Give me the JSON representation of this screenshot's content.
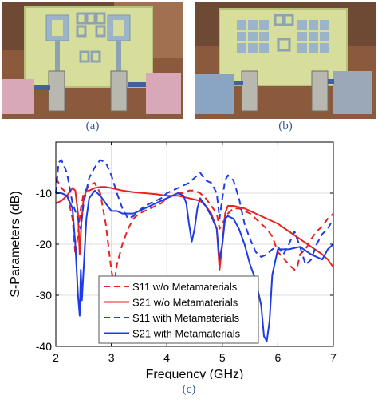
{
  "captions": {
    "a": "(a)",
    "b": "(b)",
    "c": "(c)"
  },
  "colors": {
    "red": "#e8231f",
    "blue": "#1e3ce6"
  },
  "chart_data": {
    "type": "line",
    "xlabel": "Frequency (GHz)",
    "ylabel": "S-Parameters (dB)",
    "xlim": [
      2,
      7
    ],
    "ylim": [
      -40,
      0
    ],
    "xticks": [
      2,
      3,
      4,
      5,
      6,
      7
    ],
    "yticks": [
      -40,
      -30,
      -20,
      -10
    ],
    "grid": true,
    "legend_position": "bottom-left",
    "series": [
      {
        "name": "S11 w/o Metamaterials",
        "color": "#e8231f",
        "dash": true,
        "x": [
          2.0,
          2.1,
          2.2,
          2.3,
          2.35,
          2.4,
          2.45,
          2.5,
          2.6,
          2.7,
          2.8,
          2.9,
          3.0,
          3.05,
          3.1,
          3.2,
          3.3,
          3.4,
          3.5,
          3.6,
          3.7,
          3.8,
          3.9,
          4.0,
          4.1,
          4.2,
          4.3,
          4.4,
          4.5,
          4.6,
          4.7,
          4.8,
          4.9,
          4.95,
          5.0,
          5.1,
          5.2,
          5.3,
          5.4,
          5.5,
          5.6,
          5.7,
          5.8,
          5.9,
          6.0,
          6.2,
          6.3,
          6.35,
          6.4,
          6.5,
          6.6,
          6.7,
          6.8,
          6.9,
          7.0
        ],
        "y": [
          -7,
          -9,
          -10,
          -15,
          -22,
          -18,
          -13,
          -10,
          -8.5,
          -8,
          -10,
          -16,
          -25,
          -28,
          -24,
          -20,
          -17,
          -15,
          -14,
          -13.5,
          -13,
          -12.5,
          -12,
          -11,
          -10.5,
          -10,
          -10,
          -9.5,
          -9.5,
          -10,
          -11,
          -12.5,
          -14,
          -17,
          -16,
          -14,
          -13,
          -13,
          -13.5,
          -14,
          -15,
          -16,
          -17,
          -18.5,
          -21.5,
          -24,
          -25,
          -24.5,
          -22,
          -21,
          -19,
          -17.5,
          -16.5,
          -15,
          -14
        ]
      },
      {
        "name": "S21 w/o Metamaterials",
        "color": "#e8231f",
        "dash": false,
        "x": [
          2.0,
          2.1,
          2.2,
          2.3,
          2.35,
          2.4,
          2.43,
          2.46,
          2.5,
          2.55,
          2.6,
          2.7,
          2.8,
          2.9,
          3.0,
          3.2,
          3.4,
          3.6,
          3.8,
          4.0,
          4.2,
          4.4,
          4.6,
          4.7,
          4.8,
          4.9,
          4.95,
          5.0,
          5.05,
          5.1,
          5.2,
          5.4,
          5.6,
          5.8,
          6.0,
          6.2,
          6.4,
          6.6,
          6.8,
          6.9,
          7.0
        ],
        "y": [
          -12,
          -11.5,
          -10.5,
          -9,
          -9.5,
          -14,
          -22,
          -16,
          -11,
          -9.5,
          -9.5,
          -9,
          -8.8,
          -8.8,
          -9,
          -9.5,
          -9.8,
          -10,
          -10.2,
          -10.5,
          -10.5,
          -11,
          -11.5,
          -12.5,
          -14,
          -17,
          -25,
          -20,
          -14,
          -12.5,
          -12.5,
          -13,
          -14,
          -15,
          -16,
          -17.5,
          -19,
          -20.5,
          -22,
          -23,
          -24.5
        ]
      },
      {
        "name": "S11 with Metamaterials",
        "color": "#1e3ce6",
        "dash": true,
        "x": [
          2.0,
          2.05,
          2.1,
          2.2,
          2.3,
          2.4,
          2.45,
          2.5,
          2.6,
          2.7,
          2.8,
          2.9,
          3.0,
          3.1,
          3.2,
          3.3,
          3.4,
          3.5,
          3.6,
          3.7,
          3.8,
          3.9,
          4.0,
          4.1,
          4.2,
          4.3,
          4.4,
          4.5,
          4.6,
          4.7,
          4.8,
          4.9,
          4.95,
          5.0,
          5.05,
          5.1,
          5.2,
          5.3,
          5.4,
          5.5,
          5.6,
          5.7,
          5.8,
          5.9,
          6.0,
          6.1,
          6.2,
          6.3,
          6.4,
          6.5,
          6.6,
          6.7,
          6.8,
          6.9,
          7.0
        ],
        "y": [
          -10,
          -4,
          -3.5,
          -6,
          -12,
          -15,
          -17,
          -12,
          -7,
          -5,
          -3.5,
          -4,
          -6.5,
          -10,
          -13,
          -15,
          -14.5,
          -13.5,
          -12.5,
          -12,
          -11.5,
          -11,
          -10,
          -9.5,
          -9,
          -8.5,
          -8,
          -7,
          -6,
          -7.5,
          -8,
          -10,
          -15,
          -11,
          -7.5,
          -6.5,
          -7.5,
          -11,
          -16,
          -19,
          -21.5,
          -22.5,
          -22,
          -21,
          -20.5,
          -22,
          -20,
          -17.5,
          -20.5,
          -24,
          -23,
          -20,
          -18,
          -17,
          -15
        ]
      },
      {
        "name": "S21 with Metamaterials",
        "color": "#1e3ce6",
        "dash": false,
        "x": [
          2.0,
          2.1,
          2.2,
          2.3,
          2.35,
          2.4,
          2.43,
          2.45,
          2.47,
          2.5,
          2.55,
          2.6,
          2.7,
          2.8,
          2.9,
          3.0,
          3.1,
          3.2,
          3.4,
          3.6,
          3.8,
          4.0,
          4.1,
          4.2,
          4.3,
          4.35,
          4.4,
          4.45,
          4.5,
          4.55,
          4.6,
          4.7,
          4.8,
          4.9,
          4.95,
          5.0,
          5.05,
          5.1,
          5.2,
          5.3,
          5.4,
          5.5,
          5.6,
          5.7,
          5.75,
          5.8,
          5.85,
          5.9,
          6.0,
          6.2,
          6.4,
          6.6,
          6.8,
          6.9,
          7.0
        ],
        "y": [
          -10,
          -10,
          -10.5,
          -13,
          -20,
          -30,
          -34,
          -25,
          -31,
          -25,
          -15,
          -11,
          -9.5,
          -10.5,
          -12,
          -13.5,
          -13.5,
          -14,
          -14,
          -13,
          -12,
          -11,
          -10.5,
          -10,
          -10.5,
          -12,
          -16,
          -19.5,
          -17,
          -13,
          -11,
          -12.5,
          -14.5,
          -17,
          -23,
          -20,
          -15,
          -14.5,
          -15,
          -17,
          -20,
          -24,
          -27,
          -32,
          -38,
          -39,
          -35,
          -26,
          -21,
          -21,
          -20.5,
          -22,
          -23,
          -21,
          -20
        ]
      }
    ]
  }
}
